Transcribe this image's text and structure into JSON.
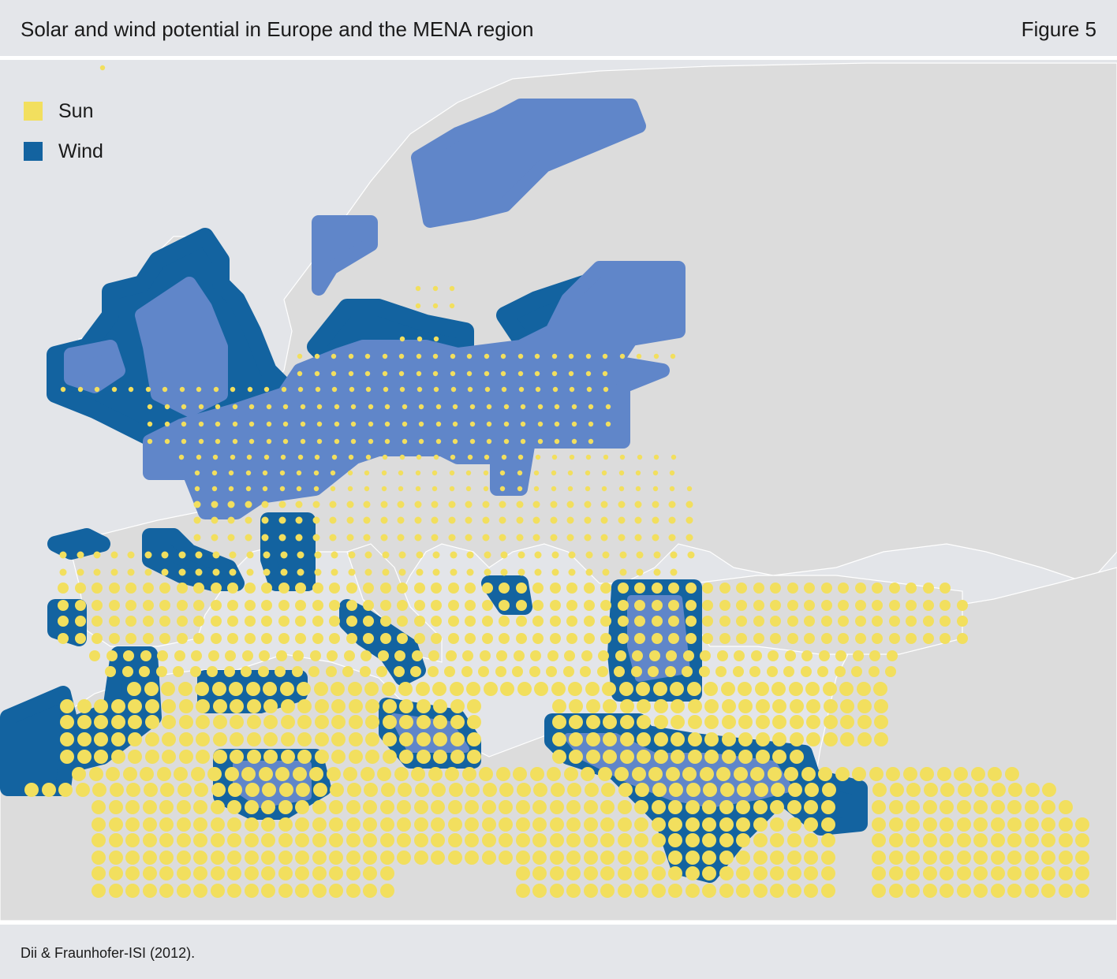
{
  "header": {
    "title": "Solar and wind potential in Europe and the MENA region",
    "figure_label": "Figure 5"
  },
  "legend": {
    "items": [
      {
        "label": "Sun",
        "color": "#f2df5e"
      },
      {
        "label": "Wind",
        "color": "#1363a0"
      }
    ]
  },
  "map": {
    "land_color": "#dcdcdc",
    "sea_color": "#e3e5e9",
    "wind_outer_color": "#1363a0",
    "wind_inner_color": "#6086c9",
    "sun_color": "#f2df5e"
  },
  "footer": {
    "source": "Dii & Fraunhofer-ISI (2012)."
  }
}
